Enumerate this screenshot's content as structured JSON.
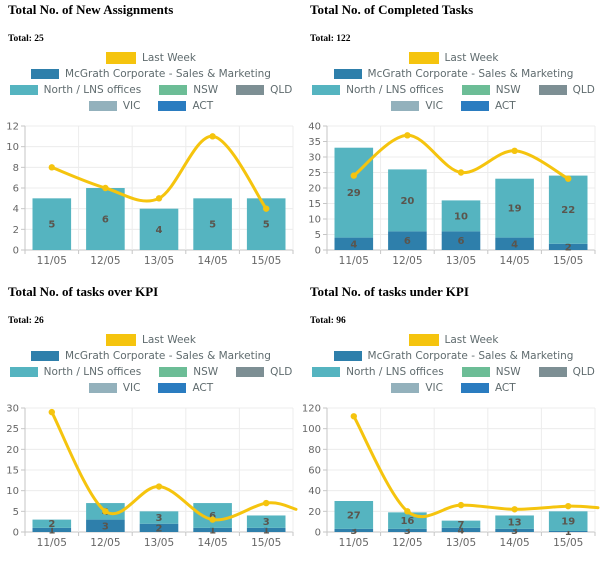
{
  "page": {
    "background": "#ffffff"
  },
  "palette": {
    "last_week": "#f5c40e",
    "mcgrath": "#2e7fab",
    "north": "#55b4c0",
    "nsw": "#6cbd96",
    "qld": "#7d8f94",
    "vic": "#93b1bc",
    "act": "#2a7cc0",
    "grid_line": "#ececec",
    "axis_line": "#c6c6c6",
    "axis_text": "#666666",
    "bar_label": "#5a554d",
    "legend_text": "#5f6b6e"
  },
  "legend": {
    "items": [
      {
        "label": "Last Week",
        "color": "last_week"
      },
      {
        "label": "McGrath Corporate - Sales & Marketing",
        "color": "mcgrath"
      },
      {
        "label": "North / LNS offices",
        "color": "north"
      },
      {
        "label": "NSW",
        "color": "nsw"
      },
      {
        "label": "QLD",
        "color": "qld"
      },
      {
        "label": "VIC",
        "color": "vic"
      },
      {
        "label": "ACT",
        "color": "act"
      }
    ]
  },
  "chart_data": [
    {
      "type": "bar",
      "title": "Total No. of New Assignments",
      "total_label": "Total: 25",
      "total": 25,
      "categories": [
        "11/05",
        "12/05",
        "13/05",
        "14/05",
        "15/05"
      ],
      "series": [
        {
          "name": "North / LNS offices",
          "color": "north",
          "values": [
            5,
            6,
            4,
            5,
            5
          ]
        }
      ],
      "line_series": {
        "name": "Last Week",
        "color": "last_week",
        "values": [
          8,
          6,
          5,
          11,
          4
        ],
        "extend_to_right_edge_value": null
      },
      "ylim": [
        0,
        12
      ],
      "ytick": 2,
      "grid": true,
      "legend_position": "top-center",
      "xlabel": "",
      "ylabel": ""
    },
    {
      "type": "bar",
      "title": "Total No. of Completed Tasks",
      "total_label": "Total: 122",
      "total": 122,
      "categories": [
        "11/05",
        "12/05",
        "13/05",
        "14/05",
        "15/05"
      ],
      "series": [
        {
          "name": "McGrath Corporate - Sales & Marketing",
          "color": "mcgrath",
          "values": [
            4,
            6,
            6,
            4,
            2
          ]
        },
        {
          "name": "North / LNS offices",
          "color": "north",
          "values": [
            29,
            20,
            10,
            19,
            22
          ]
        }
      ],
      "line_series": {
        "name": "Last Week",
        "color": "last_week",
        "values": [
          24,
          37,
          25,
          32,
          23
        ],
        "extend_to_right_edge_value": null
      },
      "ylim": [
        0,
        40
      ],
      "ytick": 5,
      "grid": true,
      "legend_position": "top-center",
      "xlabel": "",
      "ylabel": ""
    },
    {
      "type": "bar",
      "title": "Total No. of tasks over KPI",
      "total_label": "Total: 26",
      "total": 26,
      "categories": [
        "11/05",
        "12/05",
        "13/05",
        "14/05",
        "15/05"
      ],
      "series": [
        {
          "name": "McGrath Corporate - Sales & Marketing",
          "color": "mcgrath",
          "values": [
            1,
            3,
            2,
            1,
            1
          ]
        },
        {
          "name": "North / LNS offices",
          "color": "north",
          "values": [
            2,
            4,
            3,
            6,
            3
          ]
        }
      ],
      "line_series": {
        "name": "Last Week",
        "color": "last_week",
        "values": [
          29,
          5,
          11,
          3,
          7
        ],
        "extend_to_right_edge_value": 5.5
      },
      "ylim": [
        0,
        30
      ],
      "ytick": 5,
      "grid": true,
      "legend_position": "top-center",
      "xlabel": "",
      "ylabel": ""
    },
    {
      "type": "bar",
      "title": "Total No. of tasks under KPI",
      "total_label": "Total: 96",
      "total": 96,
      "categories": [
        "11/05",
        "12/05",
        "13/05",
        "14/05",
        "15/05"
      ],
      "series": [
        {
          "name": "McGrath Corporate - Sales & Marketing",
          "color": "mcgrath",
          "values": [
            3,
            3,
            4,
            3,
            1
          ]
        },
        {
          "name": "North / LNS offices",
          "color": "north",
          "values": [
            27,
            16,
            7,
            13,
            19
          ]
        }
      ],
      "line_series": {
        "name": "Last Week",
        "color": "last_week",
        "values": [
          112,
          20,
          26,
          22,
          25
        ],
        "extend_to_right_edge_value": 23.5
      },
      "ylim": [
        0,
        120
      ],
      "ytick": 20,
      "grid": true,
      "legend_position": "top-center",
      "xlabel": "",
      "ylabel": ""
    }
  ]
}
